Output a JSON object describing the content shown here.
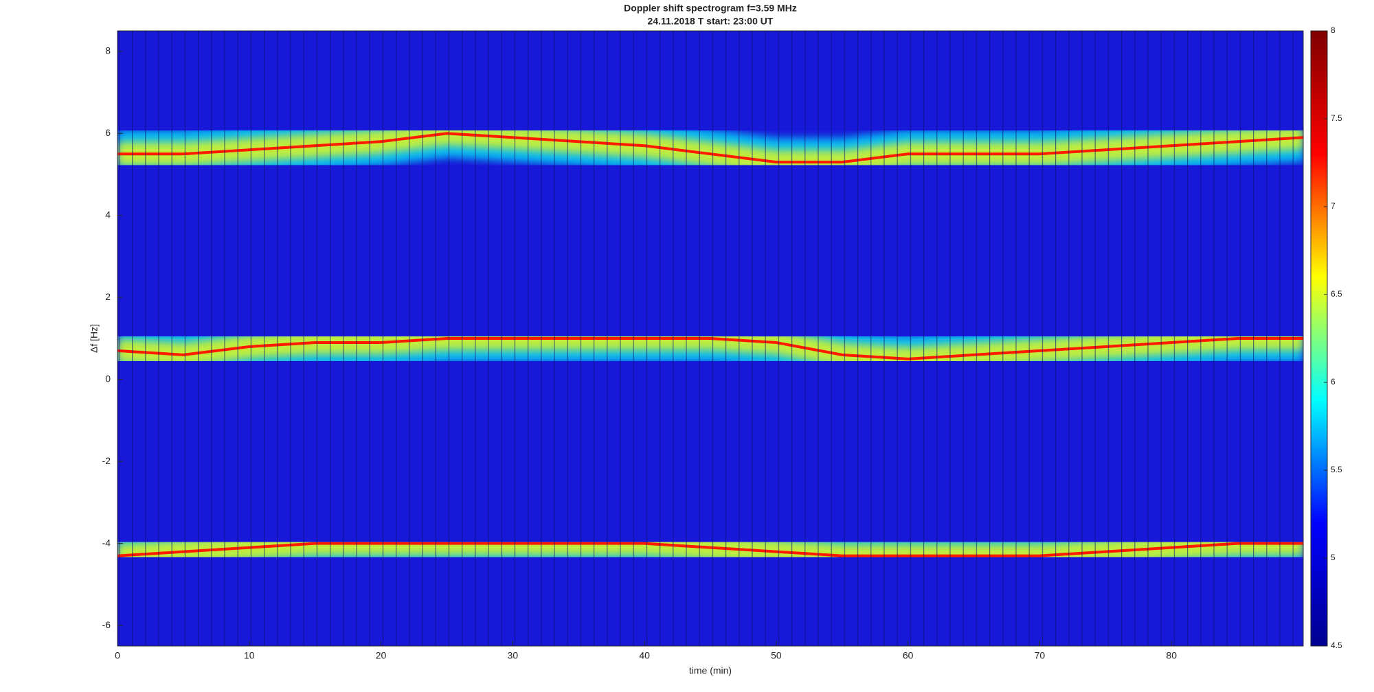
{
  "chart_data": {
    "type": "spectrogram",
    "title": "Doppler shift spectrogram f=3.59 MHz",
    "subtitle": "24.11.2018    T start: 23:00 UT",
    "x_label": "time (min)",
    "y_label": "Δf [Hz]",
    "x": [
      0,
      5,
      10,
      15,
      20,
      25,
      30,
      35,
      40,
      45,
      50,
      55,
      60,
      65,
      70,
      75,
      80,
      85,
      90
    ],
    "series": [
      {
        "color": "#ff1a00",
        "values": [
          5.5,
          5.5,
          5.6,
          5.7,
          5.8,
          6.0,
          5.9,
          5.8,
          5.7,
          5.5,
          5.3,
          5.3,
          5.5,
          5.5,
          5.5,
          5.6,
          5.7,
          5.8,
          5.9
        ]
      },
      {
        "color": "#ff1a00",
        "values": [
          0.7,
          0.6,
          0.8,
          0.9,
          0.9,
          1.0,
          1.0,
          1.0,
          1.0,
          1.0,
          0.9,
          0.6,
          0.5,
          0.6,
          0.7,
          0.8,
          0.9,
          1.0,
          1.0
        ]
      },
      {
        "color": "#ff1a00",
        "values": [
          -4.3,
          -4.2,
          -4.1,
          -4.0,
          -4.0,
          -4.0,
          -4.0,
          -4.0,
          -4.0,
          -4.1,
          -4.2,
          -4.3,
          -4.3,
          -4.3,
          -4.3,
          -4.2,
          -4.1,
          -4.0,
          -4.0
        ]
      }
    ],
    "xlim": [
      0,
      90
    ],
    "xticks": [
      0,
      10,
      20,
      30,
      40,
      50,
      60,
      70,
      80
    ],
    "ylim": [
      -6.5,
      8.5
    ],
    "yticks": [
      -6,
      -4,
      -2,
      0,
      2,
      4,
      6,
      8
    ],
    "colormap": [
      "#00008f",
      "#0000ff",
      "#00ffff",
      "#ffff00",
      "#ff0000",
      "#800000"
    ],
    "clim": [
      4.5,
      8
    ],
    "cticks": [
      4.5,
      5,
      5.5,
      6,
      6.5,
      7,
      7.5,
      8
    ]
  }
}
